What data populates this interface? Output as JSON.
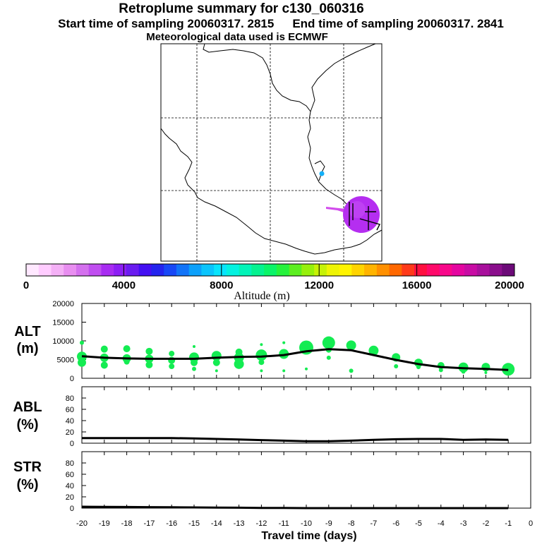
{
  "header": {
    "title": "Retroplume summary for c130_060316",
    "start_label": "Start time of sampling 20060317.  2815",
    "end_label": "End time of sampling 20060317.  2841",
    "met_label": "Meteorological data used is ECMWF"
  },
  "colorbar": {
    "title": "Altitude (m)",
    "labels": [
      "0",
      "4000",
      "8000",
      "12000",
      "16000",
      "20000"
    ],
    "colors": [
      "#ffe8ff",
      "#ffccff",
      "#f4b0f6",
      "#e88ef0",
      "#d470ee",
      "#c04ef0",
      "#a82cf2",
      "#8c1ef4",
      "#6a1cf0",
      "#4410f2",
      "#2424ee",
      "#1848f6",
      "#1274f8",
      "#0ca0fa",
      "#0ac4fc",
      "#08e4fc",
      "#04f2e0",
      "#02f4b8",
      "#04f290",
      "#0af468",
      "#26f23c",
      "#5cee20",
      "#96f00c",
      "#c6f206",
      "#eef404",
      "#fff400",
      "#ffd400",
      "#ffb400",
      "#ff9000",
      "#ff6800",
      "#ff3a1a",
      "#ff1040",
      "#ff0a6a",
      "#f8088a",
      "#e406a0",
      "#c80ca4",
      "#a8109c",
      "#8a0e8c",
      "#6c0a78"
    ]
  },
  "chart_data": [
    {
      "type": "scatter-line",
      "panel": "ALT",
      "ylabel": "ALT (m)",
      "ylim": [
        0,
        20000
      ],
      "yticks": [
        0,
        5000,
        10000,
        15000,
        20000
      ],
      "xlim": [
        -20,
        0
      ],
      "mean_line": [
        [
          -20,
          5900
        ],
        [
          -19,
          5500
        ],
        [
          -18,
          5300
        ],
        [
          -17,
          5200
        ],
        [
          -16,
          5200
        ],
        [
          -15,
          5200
        ],
        [
          -14,
          5500
        ],
        [
          -13,
          5700
        ],
        [
          -12,
          5800
        ],
        [
          -11,
          6200
        ],
        [
          -10,
          7200
        ],
        [
          -9,
          7800
        ],
        [
          -8,
          7500
        ],
        [
          -7,
          6200
        ],
        [
          -6,
          4900
        ],
        [
          -5,
          3800
        ],
        [
          -4,
          3000
        ],
        [
          -3,
          2700
        ],
        [
          -2,
          2500
        ],
        [
          -1,
          2200
        ]
      ],
      "points": [
        [
          -20,
          5800,
          7
        ],
        [
          -20,
          4200,
          6
        ],
        [
          -20,
          9500,
          3
        ],
        [
          -19,
          5500,
          6
        ],
        [
          -19,
          3500,
          5
        ],
        [
          -19,
          7800,
          5
        ],
        [
          -18,
          5300,
          6
        ],
        [
          -18,
          4400,
          4
        ],
        [
          -18,
          7900,
          5
        ],
        [
          -17,
          5200,
          6
        ],
        [
          -17,
          3600,
          5
        ],
        [
          -17,
          7200,
          5
        ],
        [
          -16,
          4800,
          5
        ],
        [
          -16,
          3200,
          4
        ],
        [
          -16,
          6600,
          4
        ],
        [
          -15,
          5600,
          7
        ],
        [
          -15,
          4200,
          5
        ],
        [
          -15,
          2500,
          3
        ],
        [
          -15,
          8500,
          2
        ],
        [
          -14,
          6000,
          7
        ],
        [
          -14,
          4200,
          5
        ],
        [
          -14,
          2000,
          2
        ],
        [
          -13,
          5500,
          7
        ],
        [
          -13,
          3800,
          7
        ],
        [
          -13,
          7000,
          5
        ],
        [
          -12,
          6200,
          8
        ],
        [
          -12,
          2000,
          2
        ],
        [
          -12,
          4300,
          4
        ],
        [
          -12,
          9000,
          2
        ],
        [
          -11,
          6500,
          7
        ],
        [
          -11,
          2000,
          2
        ],
        [
          -11,
          9500,
          2
        ],
        [
          -10,
          8200,
          10
        ],
        [
          -10,
          2500,
          2
        ],
        [
          -9,
          9500,
          9
        ],
        [
          -9,
          5500,
          3
        ],
        [
          -9,
          7600,
          4
        ],
        [
          -8,
          8800,
          7
        ],
        [
          -8,
          2000,
          3
        ],
        [
          -7,
          7400,
          7
        ],
        [
          -6,
          5600,
          6
        ],
        [
          -6,
          3200,
          3
        ],
        [
          -5,
          4100,
          6
        ],
        [
          -5,
          3000,
          3
        ],
        [
          -4,
          3400,
          5
        ],
        [
          -4,
          2200,
          3
        ],
        [
          -3,
          2900,
          7
        ],
        [
          -3,
          1800,
          3
        ],
        [
          -2,
          3000,
          6
        ],
        [
          -2,
          1500,
          2
        ],
        [
          -1,
          2400,
          9
        ],
        [
          -1,
          1300,
          3
        ]
      ]
    },
    {
      "type": "line",
      "panel": "ABL",
      "ylabel": "ABL (%)",
      "ylim": [
        0,
        100
      ],
      "yticks": [
        0,
        20,
        40,
        60,
        80
      ],
      "x": [
        -20,
        -19,
        -18,
        -17,
        -16,
        -15,
        -14,
        -13,
        -12,
        -11,
        -10,
        -9,
        -8,
        -7,
        -6,
        -5,
        -4,
        -3,
        -2,
        -1
      ],
      "values": [
        9,
        9,
        9,
        9,
        9,
        8.5,
        7.5,
        6.5,
        5.5,
        4.5,
        3.5,
        3.5,
        4.5,
        6,
        7,
        7.5,
        7.5,
        6,
        6.5,
        6
      ]
    },
    {
      "type": "line",
      "panel": "STR",
      "ylabel": "STR (%)",
      "ylim": [
        0,
        100
      ],
      "yticks": [
        0,
        20,
        40,
        60,
        80
      ],
      "x": [
        -20,
        -19,
        -18,
        -17,
        -16,
        -15,
        -14,
        -13,
        -12,
        -11,
        -10,
        -9,
        -8,
        -7,
        -6,
        -5,
        -4,
        -3,
        -2,
        -1
      ],
      "values": [
        2.5,
        2.3,
        2,
        1.8,
        1.5,
        1.3,
        1,
        0.7,
        0.4,
        0.2,
        0,
        0,
        0,
        0,
        0,
        0,
        0,
        0,
        0,
        0
      ]
    }
  ],
  "xaxis": {
    "label": "Travel time (days)",
    "ticks": [
      "-20",
      "-19",
      "-18",
      "-17",
      "-16",
      "-15",
      "-14",
      "-13",
      "-12",
      "-11",
      "-10",
      "-9",
      "-8",
      "-7",
      "-6",
      "-5",
      "-4",
      "-3",
      "-2",
      "-1",
      "0"
    ]
  },
  "panels": {
    "alt": {
      "l1": "ALT",
      "l2": "(m)"
    },
    "abl": {
      "l1": "ABL",
      "l2": "(%)"
    },
    "str": {
      "l1": "STR",
      "l2": "(%)"
    }
  }
}
